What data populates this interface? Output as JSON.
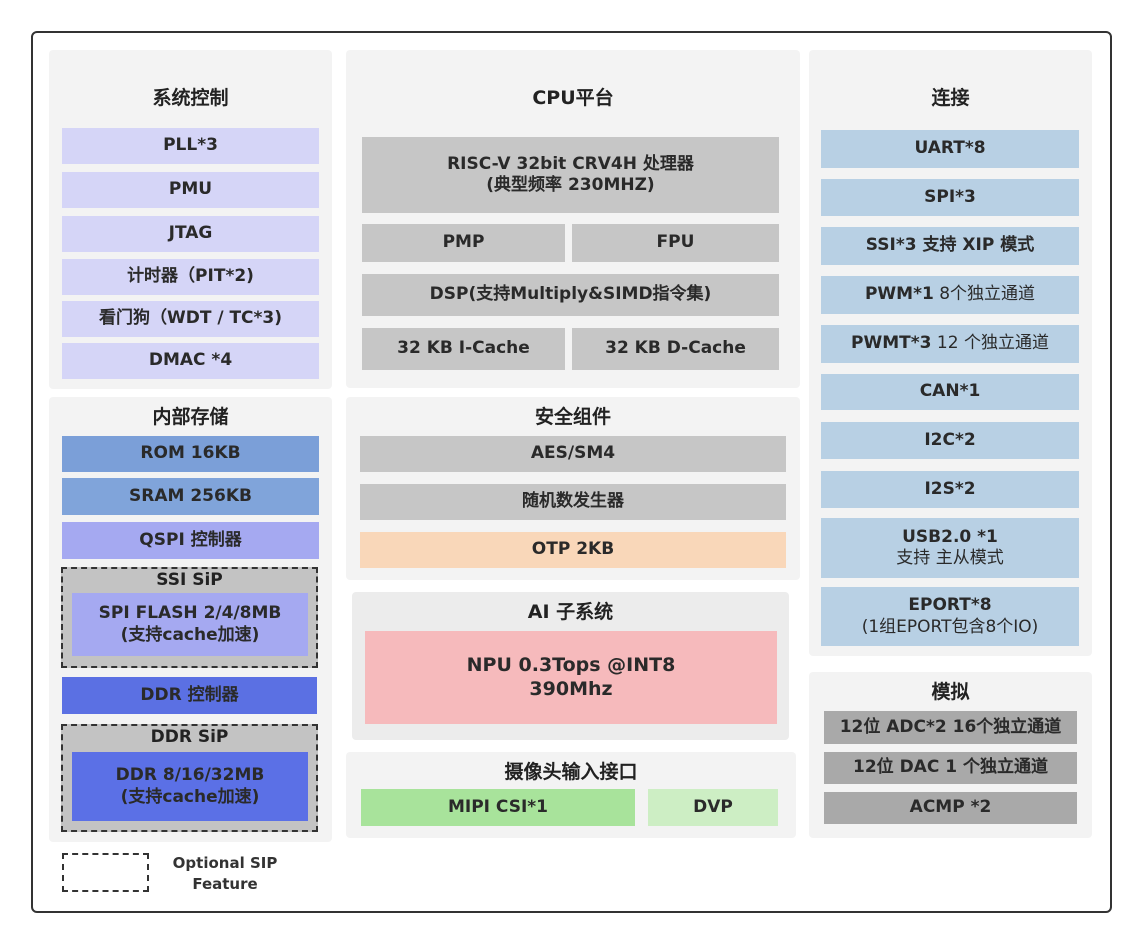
{
  "system_control": {
    "title": "系统控制",
    "items": [
      "PLL*3",
      "PMU",
      "JTAG",
      "计时器（PIT*2)",
      "看门狗（WDT / TC*3)",
      "DMAC *4"
    ]
  },
  "internal_storage": {
    "title": "内部存储",
    "rom": "ROM  16KB",
    "sram": "SRAM 256KB",
    "qspi": "QSPI 控制器",
    "ssi_sip": {
      "title": "SSI SiP",
      "line1": "SPI FLASH 2/4/8MB",
      "line2": "(支持cache加速)"
    },
    "ddr_ctrl": "DDR 控制器",
    "ddr_sip": {
      "title": "DDR SiP",
      "line1": "DDR 8/16/32MB",
      "line2": "(支持cache加速)"
    }
  },
  "legend": {
    "line1": "Optional SIP",
    "line2": "Feature"
  },
  "cpu": {
    "title": "CPU平台",
    "core_line1": "RISC-V 32bit  CRV4H 处理器",
    "core_line2": "(典型频率 230MHZ)",
    "pmp": "PMP",
    "fpu": "FPU",
    "dsp": "DSP(支持Multiply&SIMD指令集)",
    "icache": "32 KB I-Cache",
    "dcache": "32 KB D-Cache"
  },
  "security": {
    "title": "安全组件",
    "items": [
      "AES/SM4",
      "随机数发生器",
      "OTP 2KB"
    ]
  },
  "ai": {
    "title": "AI 子系统",
    "line1": "NPU 0.3Tops @INT8",
    "line2": "390Mhz"
  },
  "camera": {
    "title": "摄像头输入接口",
    "mipi": "MIPI CSI*1",
    "dvp": "DVP"
  },
  "connectivity": {
    "title": "连接",
    "uart": "UART*8",
    "spi": "SPI*3",
    "ssi": "SSI*3 支持 XIP 模式",
    "pwm_b": "PWM*1",
    "pwm_n": " 8个独立通道",
    "pwmt_b": "PWMT*3",
    "pwmt_n": " 12 个独立通道",
    "can": "CAN*1",
    "i2c": "I2C*2",
    "i2s": "I2S*2",
    "usb_line1": "USB2.0 *1",
    "usb_line2": "支持 主从模式",
    "eport_line1": "EPORT*8",
    "eport_line2": "(1组EPORT包含8个IO)"
  },
  "analog": {
    "title": "模拟",
    "items": [
      "12位 ADC*2 16个独立通道",
      "12位 DAC 1 个独立通道",
      "ACMP *2"
    ]
  },
  "colors": {
    "system": "#d5d5f7",
    "rom": "#7b9fd8",
    "qspi": "#a5a9f1",
    "ddr": "#5b70e3",
    "cpu_gray": "#c6c6c6",
    "otp": "#f9d7b9",
    "npu": "#f6babc",
    "mipi": "#a8e39b",
    "dvp": "#cdeec4",
    "connectivity": "#b8d0e4",
    "analog": "#a9a9a9"
  }
}
